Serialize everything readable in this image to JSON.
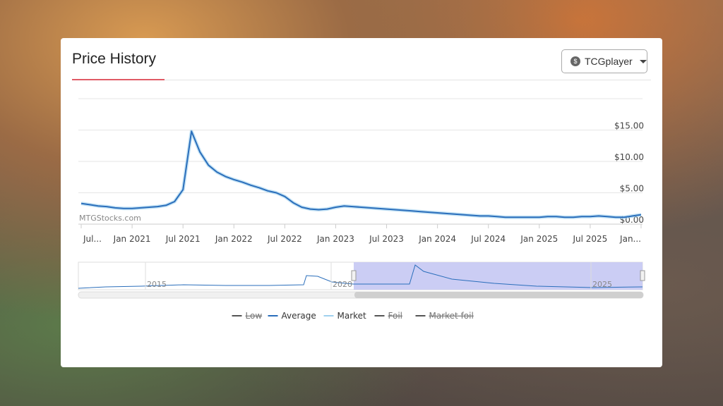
{
  "header": {
    "title": "Price History",
    "source_icon": "$",
    "source_button": "TCGplayer"
  },
  "chart_data": {
    "type": "line",
    "watermark": "MTGStocks.com",
    "x": [
      "2020-07",
      "2020-08",
      "2020-09",
      "2020-10",
      "2020-11",
      "2020-12",
      "2021-01",
      "2021-02",
      "2021-03",
      "2021-04",
      "2021-05",
      "2021-06",
      "2021-07",
      "2021-08",
      "2021-09",
      "2021-10",
      "2021-11",
      "2021-12",
      "2022-01",
      "2022-02",
      "2022-03",
      "2022-04",
      "2022-05",
      "2022-06",
      "2022-07",
      "2022-08",
      "2022-09",
      "2022-10",
      "2022-11",
      "2022-12",
      "2023-01",
      "2023-02",
      "2023-03",
      "2023-04",
      "2023-05",
      "2023-06",
      "2023-07",
      "2023-08",
      "2023-09",
      "2023-10",
      "2023-11",
      "2023-12",
      "2024-01",
      "2024-02",
      "2024-03",
      "2024-04",
      "2024-05",
      "2024-06",
      "2024-07",
      "2024-08",
      "2024-09",
      "2024-10",
      "2024-11",
      "2024-12",
      "2025-01",
      "2025-02",
      "2025-03",
      "2025-04",
      "2025-05",
      "2025-06",
      "2025-07",
      "2025-08",
      "2025-09",
      "2025-10",
      "2025-11",
      "2025-12",
      "2026-01"
    ],
    "series": [
      {
        "color": "#2a6ebb",
        "values": [
          3.3,
          3.1,
          2.9,
          2.8,
          2.6,
          2.5,
          2.5,
          2.6,
          2.7,
          2.8,
          3.0,
          3.6,
          5.5,
          14.8,
          11.5,
          9.4,
          8.3,
          7.6,
          7.1,
          6.7,
          6.2,
          5.8,
          5.3,
          5.0,
          4.4,
          3.4,
          2.7,
          2.4,
          2.3,
          2.4,
          2.7,
          2.9,
          2.8,
          2.7,
          2.6,
          2.5,
          2.4,
          2.3,
          2.2,
          2.1,
          2.0,
          1.9,
          1.8,
          1.7,
          1.6,
          1.5,
          1.4,
          1.3,
          1.3,
          1.2,
          1.1,
          1.1,
          1.1,
          1.1,
          1.1,
          1.2,
          1.2,
          1.1,
          1.1,
          1.2,
          1.2,
          1.3,
          1.2,
          1.1,
          1.1,
          1.3,
          1.5
        ]
      }
    ],
    "legend": [
      {
        "name": "Low",
        "color": "#555555",
        "hidden": true
      },
      {
        "name": "Average",
        "color": "#2a6ebb",
        "hidden": false
      },
      {
        "name": "Market",
        "color": "#9fd0ee",
        "hidden": false
      },
      {
        "name": "Foil",
        "color": "#555555",
        "hidden": true
      },
      {
        "name": "Market foil",
        "color": "#555555",
        "hidden": true
      }
    ],
    "xlim": [
      "2020-07",
      "2026-01"
    ],
    "xticks": [
      {
        "value": "2020-07",
        "label": "Jul..."
      },
      {
        "value": "2021-01",
        "label": "Jan 2021"
      },
      {
        "value": "2021-07",
        "label": "Jul 2021"
      },
      {
        "value": "2022-01",
        "label": "Jan 2022"
      },
      {
        "value": "2022-07",
        "label": "Jul 2022"
      },
      {
        "value": "2023-01",
        "label": "Jan 2023"
      },
      {
        "value": "2023-07",
        "label": "Jul 2023"
      },
      {
        "value": "2024-01",
        "label": "Jan 2024"
      },
      {
        "value": "2024-07",
        "label": "Jul 2024"
      },
      {
        "value": "2025-01",
        "label": "Jan 2025"
      },
      {
        "value": "2025-07",
        "label": "Jul 2025"
      },
      {
        "value": "2026-01",
        "label": "Jan..."
      }
    ],
    "ylim": [
      0,
      20
    ],
    "yticks": [
      {
        "value": 0,
        "label": "$0.00"
      },
      {
        "value": 5,
        "label": "$5.00"
      },
      {
        "value": 10,
        "label": "$10.00"
      },
      {
        "value": 15,
        "label": "$15.00"
      }
    ],
    "grid": true,
    "navigator": {
      "labels": [
        "2015",
        "2020",
        "2025"
      ]
    }
  }
}
